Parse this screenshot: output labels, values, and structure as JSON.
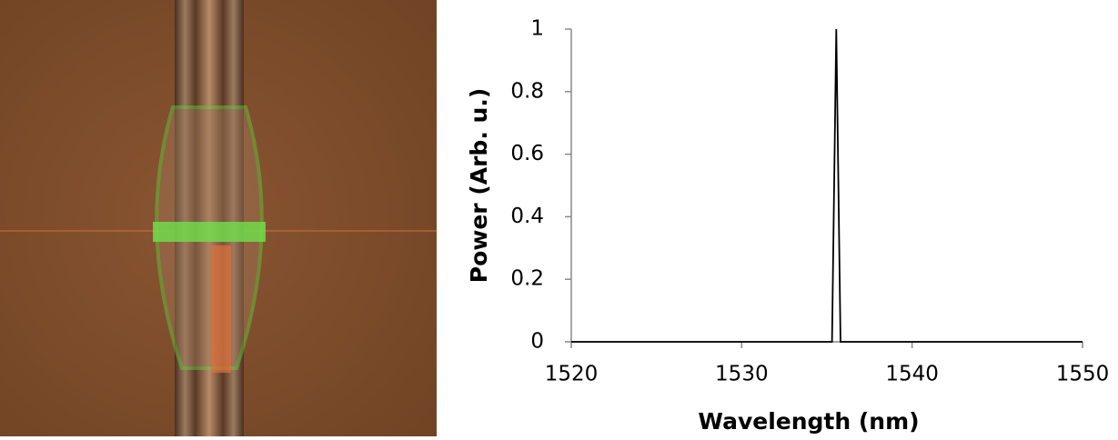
{
  "chart_data": {
    "type": "line",
    "x_label": "Wavelength (nm)",
    "y_label": "Power (Arb. u.)",
    "x": [
      1520,
      1535.3,
      1535.55,
      1535.8,
      1550
    ],
    "values": [
      0,
      0,
      1,
      0,
      0
    ],
    "color": "#000000",
    "xlim": [
      1520,
      1550
    ],
    "xticks": [
      1520,
      1530,
      1540,
      1550
    ],
    "ylim": [
      0,
      1
    ],
    "yticks": [
      0,
      0.2,
      0.4,
      0.6,
      0.8,
      1
    ],
    "grid": false
  }
}
